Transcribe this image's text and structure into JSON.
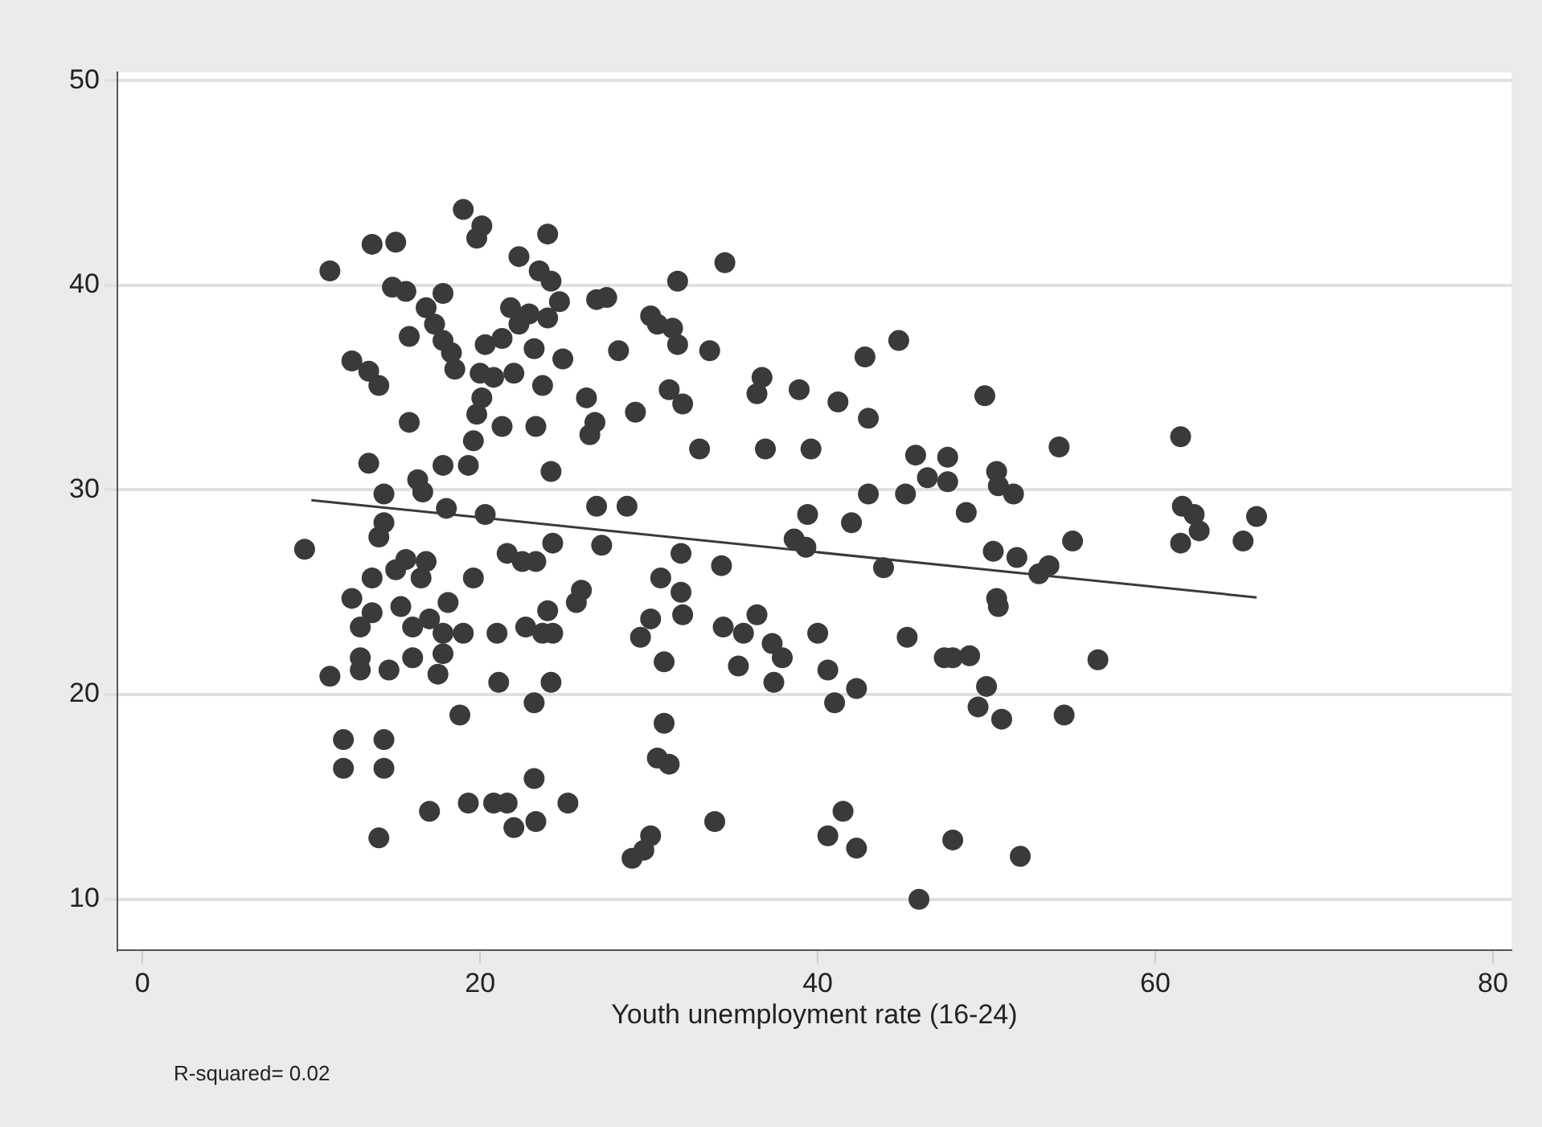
{
  "chart_data": {
    "type": "scatter",
    "xlabel": "Youth unemployment rate (16-24)",
    "annotations": [
      "R-squared= 0.02"
    ],
    "xlim": [
      -1.5,
      81.1
    ],
    "xticks": [
      0,
      20,
      40,
      60,
      80
    ],
    "ylim": [
      7.5,
      50.4
    ],
    "yticks": [
      10,
      20,
      30,
      40,
      50
    ],
    "grid": "y",
    "legend": false,
    "marker": "circle",
    "series": [
      {
        "color": "#3a3a3a",
        "x": [
          9.6,
          11.1,
          11.1,
          11.9,
          11.9,
          12.4,
          12.4,
          12.9,
          12.9,
          12.9,
          13.4,
          13.4,
          13.6,
          14.0,
          13.6,
          13.6,
          14.0,
          14.0,
          14.3,
          14.3,
          14.3,
          14.3,
          14.6,
          14.8,
          15.0,
          15.6,
          15.0,
          15.3,
          15.6,
          15.8,
          15.8,
          16.0,
          16.0,
          16.3,
          16.6,
          16.5,
          16.8,
          17.0,
          17.0,
          16.8,
          17.3,
          17.8,
          17.5,
          17.8,
          17.8,
          17.8,
          17.8,
          18.0,
          18.1,
          18.3,
          18.5,
          18.8,
          19.0,
          19.0,
          19.3,
          19.3,
          19.6,
          19.6,
          19.8,
          20.1,
          19.8,
          20.1,
          20.0,
          20.3,
          20.3,
          20.8,
          21.0,
          21.1,
          20.8,
          21.3,
          21.3,
          21.6,
          21.6,
          21.8,
          22.0,
          22.3,
          22.0,
          22.3,
          22.5,
          22.7,
          22.9,
          23.2,
          23.3,
          23.3,
          23.2,
          23.2,
          23.3,
          23.5,
          23.7,
          23.7,
          24.0,
          24.2,
          24.0,
          24.2,
          24.0,
          24.3,
          24.2,
          24.3,
          24.7,
          24.9,
          25.2,
          25.7,
          26.0,
          26.3,
          26.5,
          26.8,
          26.9,
          27.2,
          27.5,
          26.9,
          28.2,
          28.7,
          29.0,
          29.5,
          29.7,
          29.2,
          30.1,
          30.5,
          30.1,
          30.1,
          30.7,
          30.5,
          30.9,
          30.9,
          31.2,
          31.2,
          31.7,
          31.4,
          31.7,
          31.9,
          31.9,
          32.0,
          32.0,
          33.0,
          33.6,
          33.9,
          34.3,
          34.5,
          34.4,
          35.3,
          35.6,
          36.4,
          36.7,
          36.4,
          36.9,
          37.3,
          37.4,
          37.9,
          38.6,
          38.9,
          39.3,
          39.4,
          39.6,
          40.0,
          40.6,
          40.6,
          41.0,
          41.2,
          41.5,
          42.0,
          42.3,
          42.3,
          42.8,
          43.0,
          43.0,
          43.9,
          44.8,
          45.3,
          46.0,
          47.5,
          48.0,
          49.0,
          49.5,
          50.0,
          50.9,
          54.6,
          56.6,
          49.9,
          45.8,
          47.7,
          46.5,
          47.7,
          45.2,
          48.8,
          50.6,
          50.7,
          51.6,
          54.3,
          55.1,
          50.4,
          51.8,
          53.1,
          53.7,
          50.6,
          50.7,
          61.5,
          61.6,
          62.3,
          62.6,
          61.5,
          66.0,
          65.2,
          48.0,
          52.0
        ],
        "values": [
          27.1,
          40.7,
          20.9,
          17.8,
          16.4,
          36.3,
          24.7,
          23.3,
          21.8,
          21.2,
          35.8,
          31.3,
          42.0,
          35.1,
          25.7,
          24.0,
          13.0,
          27.7,
          28.4,
          29.8,
          17.8,
          16.4,
          21.2,
          39.9,
          42.1,
          39.7,
          26.1,
          24.3,
          26.6,
          33.3,
          37.5,
          23.3,
          21.8,
          30.5,
          29.9,
          25.7,
          26.5,
          23.7,
          14.3,
          38.9,
          38.1,
          37.3,
          21.0,
          23.0,
          22.0,
          39.6,
          31.2,
          29.1,
          24.5,
          36.7,
          35.9,
          19.0,
          23.0,
          43.7,
          14.7,
          31.2,
          32.4,
          25.7,
          42.3,
          42.9,
          33.7,
          34.5,
          35.7,
          37.1,
          28.8,
          14.7,
          23.0,
          20.6,
          35.5,
          37.4,
          33.1,
          26.9,
          14.7,
          38.9,
          35.7,
          41.4,
          13.5,
          38.1,
          26.5,
          23.3,
          38.6,
          36.9,
          33.1,
          26.5,
          19.6,
          15.9,
          13.8,
          40.7,
          35.1,
          23.0,
          42.5,
          40.2,
          38.4,
          30.9,
          24.1,
          23.0,
          20.6,
          27.4,
          39.2,
          36.4,
          14.7,
          24.5,
          25.1,
          34.5,
          32.7,
          33.3,
          39.3,
          27.3,
          39.4,
          29.2,
          36.8,
          29.2,
          12.0,
          22.8,
          12.4,
          33.8,
          38.5,
          38.1,
          23.7,
          13.1,
          25.7,
          16.9,
          18.6,
          21.6,
          16.6,
          34.9,
          40.2,
          37.9,
          37.1,
          26.9,
          25.0,
          23.9,
          34.2,
          32.0,
          36.8,
          13.8,
          26.3,
          41.1,
          23.3,
          21.4,
          23.0,
          34.7,
          35.5,
          23.9,
          32.0,
          22.5,
          20.6,
          21.8,
          27.6,
          34.9,
          27.2,
          28.8,
          32.0,
          23.0,
          21.2,
          13.1,
          19.6,
          34.3,
          14.3,
          28.4,
          20.3,
          12.5,
          36.5,
          33.5,
          29.8,
          26.2,
          37.3,
          22.8,
          10.0,
          21.8,
          21.8,
          21.9,
          19.4,
          20.4,
          18.8,
          19.0,
          21.7,
          34.6,
          31.7,
          31.6,
          30.6,
          30.4,
          29.8,
          28.9,
          30.9,
          30.2,
          29.8,
          32.1,
          27.5,
          27.0,
          26.7,
          25.9,
          26.3,
          24.7,
          24.3,
          32.6,
          29.2,
          28.8,
          28.0,
          27.4,
          28.7,
          27.5,
          12.9,
          12.1
        ]
      },
      {
        "type": "line",
        "color": "#3a3a3a",
        "marker": "none",
        "x": [
          10,
          66
        ],
        "values": [
          29.5,
          24.75
        ]
      }
    ]
  }
}
